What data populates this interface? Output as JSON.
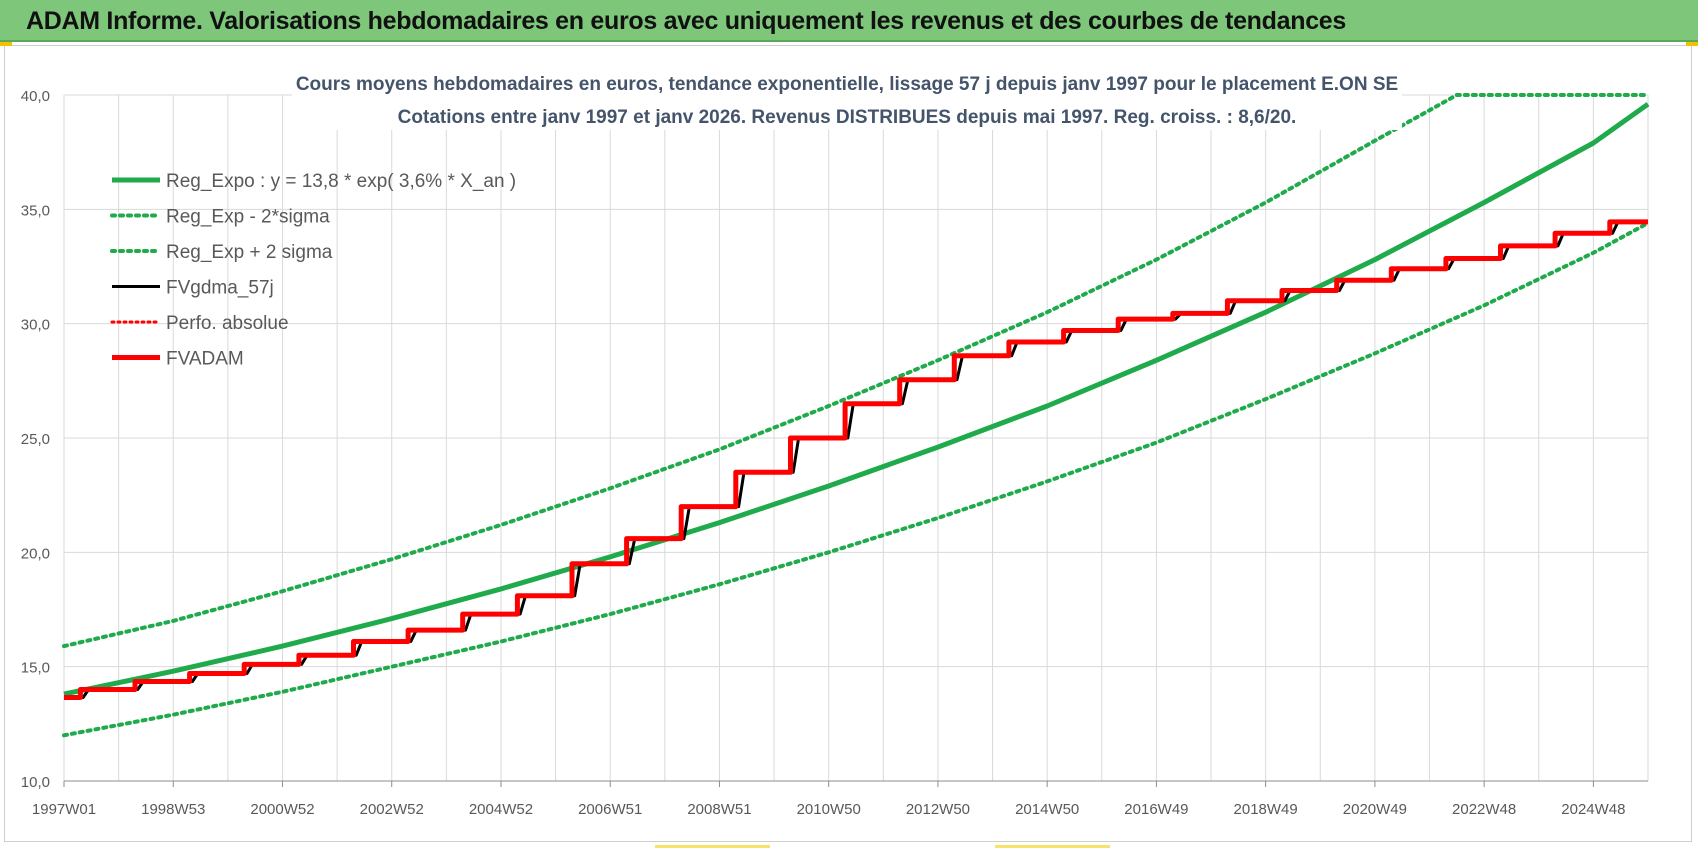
{
  "header": {
    "title": "ADAM Informe. Valorisations hebdomadaires en euros avec uniquement les revenus et des courbes de tendances"
  },
  "colors": {
    "header_bg": "#7dc67a",
    "green": "#1faa4b",
    "red": "#ff0000",
    "black": "#000000",
    "grid": "#d9d9d9"
  },
  "chart_data": {
    "type": "line",
    "title_line1": "Cours moyens hebdomadaires en euros, tendance exponentielle, lissage 57 j depuis janv 1997 pour le placement E.ON SE",
    "title_line2": "Cotations entre janv 1997 et janv 2026. Revenus DISTRIBUES depuis mai 1997. Reg. croiss. : 8,6/20.",
    "xlabel": "",
    "ylabel": "",
    "x_range": [
      1997.0,
      2026.0
    ],
    "x_ticks": [
      {
        "label": "1997W01",
        "year": 1997.0
      },
      {
        "label": "1998W53",
        "year": 1999.0
      },
      {
        "label": "2000W52",
        "year": 2001.0
      },
      {
        "label": "2002W52",
        "year": 2003.0
      },
      {
        "label": "2004W52",
        "year": 2005.0
      },
      {
        "label": "2006W51",
        "year": 2007.0
      },
      {
        "label": "2008W51",
        "year": 2009.0
      },
      {
        "label": "2010W50",
        "year": 2011.0
      },
      {
        "label": "2012W50",
        "year": 2013.0
      },
      {
        "label": "2014W50",
        "year": 2015.0
      },
      {
        "label": "2016W49",
        "year": 2017.0
      },
      {
        "label": "2018W49",
        "year": 2019.0
      },
      {
        "label": "2020W49",
        "year": 2021.0
      },
      {
        "label": "2022W48",
        "year": 2023.0
      },
      {
        "label": "2024W48",
        "year": 2025.0
      }
    ],
    "ylim": [
      10,
      40
    ],
    "y_ticks": [
      "10,0",
      "15,0",
      "20,0",
      "25,0",
      "30,0",
      "35,0",
      "40,0"
    ],
    "grid": true,
    "legend_position": "top-left",
    "series": [
      {
        "name": "Reg_Expo : y = 13,8 * exp( 3,6% *  X_an )",
        "style": "solid",
        "color": "#1faa4b",
        "width": 5,
        "x": [
          1997.0,
          1999.0,
          2001.0,
          2003.0,
          2005.0,
          2007.0,
          2009.0,
          2011.0,
          2013.0,
          2015.0,
          2017.0,
          2019.0,
          2021.0,
          2023.0,
          2025.0,
          2026.0
        ],
        "values": [
          13.8,
          14.8,
          15.9,
          17.1,
          18.4,
          19.8,
          21.3,
          22.9,
          24.6,
          26.4,
          28.4,
          30.5,
          32.8,
          35.3,
          37.9,
          39.6
        ]
      },
      {
        "name": "Reg_Exp - 2*sigma",
        "style": "dotted",
        "color": "#1faa4b",
        "width": 4,
        "x": [
          1997.0,
          1999.0,
          2001.0,
          2003.0,
          2005.0,
          2007.0,
          2009.0,
          2011.0,
          2013.0,
          2015.0,
          2017.0,
          2019.0,
          2021.0,
          2023.0,
          2025.0,
          2026.0
        ],
        "values": [
          12.0,
          12.9,
          13.9,
          15.0,
          16.1,
          17.3,
          18.6,
          20.0,
          21.5,
          23.1,
          24.8,
          26.7,
          28.7,
          30.8,
          33.1,
          34.4
        ]
      },
      {
        "name": "Reg_Exp + 2 sigma",
        "style": "dotted",
        "color": "#1faa4b",
        "width": 4,
        "x": [
          1997.0,
          1999.0,
          2001.0,
          2003.0,
          2005.0,
          2007.0,
          2009.0,
          2011.0,
          2013.0,
          2015.0,
          2017.0,
          2019.0,
          2021.0,
          2022.5,
          2026.0
        ],
        "values": [
          15.9,
          17.0,
          18.3,
          19.7,
          21.2,
          22.8,
          24.5,
          26.4,
          28.4,
          30.5,
          32.8,
          35.3,
          38.0,
          40.0,
          40.0
        ]
      },
      {
        "name": "FVgdma_57j",
        "style": "solid",
        "color": "#000000",
        "width": 3,
        "x": [
          1997.0,
          1997.35,
          1997.45,
          1998.35,
          1998.45,
          1999.35,
          1999.45,
          2000.35,
          2000.45,
          2001.35,
          2001.45,
          2002.35,
          2002.45,
          2003.35,
          2003.45,
          2004.35,
          2004.45,
          2005.35,
          2005.45,
          2006.35,
          2006.45,
          2007.35,
          2007.45,
          2008.35,
          2008.45,
          2009.35,
          2009.45,
          2010.35,
          2010.45,
          2011.35,
          2011.45,
          2012.35,
          2012.45,
          2013.35,
          2013.45,
          2014.35,
          2014.45,
          2015.35,
          2015.45,
          2016.35,
          2016.45,
          2017.35,
          2017.45,
          2018.35,
          2018.45,
          2019.35,
          2019.45,
          2020.35,
          2020.45,
          2021.35,
          2021.45,
          2022.35,
          2022.45,
          2023.35,
          2023.45,
          2024.35,
          2024.45,
          2025.35,
          2025.45,
          2026.0
        ],
        "values": [
          13.65,
          13.65,
          14.0,
          14.0,
          14.35,
          14.35,
          14.7,
          14.7,
          15.1,
          15.1,
          15.5,
          15.5,
          16.1,
          16.1,
          16.6,
          16.6,
          17.3,
          17.3,
          18.1,
          18.1,
          19.5,
          19.5,
          20.6,
          20.6,
          22.0,
          22.0,
          23.5,
          23.5,
          25.0,
          25.0,
          26.5,
          26.5,
          27.55,
          27.55,
          28.6,
          28.6,
          29.2,
          29.2,
          29.7,
          29.7,
          30.2,
          30.2,
          30.45,
          30.45,
          31.0,
          31.0,
          31.45,
          31.45,
          31.9,
          31.9,
          32.4,
          32.4,
          32.85,
          32.85,
          33.4,
          33.4,
          33.95,
          33.95,
          34.45,
          34.45
        ]
      },
      {
        "name": "Perfo. absolue",
        "style": "dotted",
        "color": "#ff0000",
        "width": 3,
        "x": [],
        "values": []
      },
      {
        "name": "FVADAM",
        "style": "solid",
        "color": "#ff0000",
        "width": 5,
        "x": [
          1997.0,
          1997.3,
          1997.3,
          1998.3,
          1998.3,
          1999.3,
          1999.3,
          2000.3,
          2000.3,
          2001.3,
          2001.3,
          2002.3,
          2002.3,
          2003.3,
          2003.3,
          2004.3,
          2004.3,
          2005.3,
          2005.3,
          2006.3,
          2006.3,
          2007.3,
          2007.3,
          2008.3,
          2008.3,
          2009.3,
          2009.3,
          2010.3,
          2010.3,
          2011.3,
          2011.3,
          2012.3,
          2012.3,
          2013.3,
          2013.3,
          2014.3,
          2014.3,
          2015.3,
          2015.3,
          2016.3,
          2016.3,
          2017.3,
          2017.3,
          2018.3,
          2018.3,
          2019.3,
          2019.3,
          2020.3,
          2020.3,
          2021.3,
          2021.3,
          2022.3,
          2022.3,
          2023.3,
          2023.3,
          2024.3,
          2024.3,
          2025.3,
          2025.3,
          2026.0
        ],
        "values": [
          13.65,
          13.65,
          14.0,
          14.0,
          14.35,
          14.35,
          14.7,
          14.7,
          15.1,
          15.1,
          15.5,
          15.5,
          16.1,
          16.1,
          16.6,
          16.6,
          17.3,
          17.3,
          18.1,
          18.1,
          19.5,
          19.5,
          20.6,
          20.6,
          22.0,
          22.0,
          23.5,
          23.5,
          25.0,
          25.0,
          26.5,
          26.5,
          27.55,
          27.55,
          28.6,
          28.6,
          29.2,
          29.2,
          29.7,
          29.7,
          30.2,
          30.2,
          30.45,
          30.45,
          31.0,
          31.0,
          31.45,
          31.45,
          31.9,
          31.9,
          32.4,
          32.4,
          32.85,
          32.85,
          33.4,
          33.4,
          33.95,
          33.95,
          34.45,
          34.45
        ]
      }
    ]
  }
}
